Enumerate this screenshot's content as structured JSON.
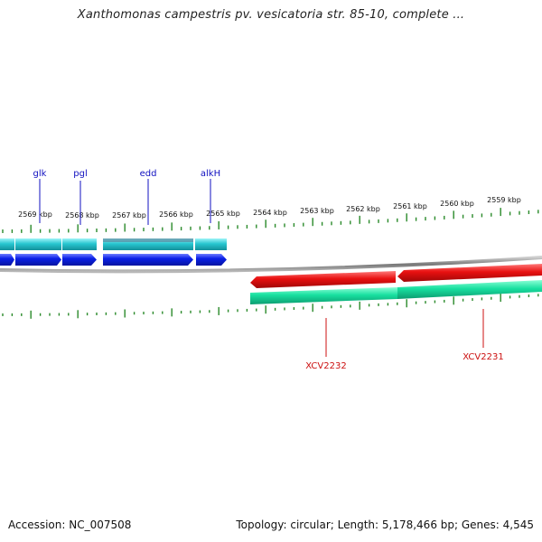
{
  "title": "Xanthomonas campestris pv. vesicatoria str. 85-10, complete ...",
  "footer": {
    "accession": "Accession: NC_007508",
    "summary": "Topology: circular; Length: 5,178,466 bp; Genes: 4,545"
  },
  "colors": {
    "tick": "#2a8a2a",
    "gene_top_blue": "#0a20e8",
    "gene_top_cyan": "#28c6d0",
    "gene_bottom_red": "#e81010",
    "gene_bottom_green": "#18e0a0",
    "backbone": "#888888",
    "label_blue": "#1010c0",
    "label_red": "#cc1010"
  },
  "tick_labels": [
    "2569 kbp",
    "2568 kbp",
    "2567 kbp",
    "2566 kbp",
    "2565 kbp",
    "2564 kbp",
    "2563 kbp",
    "2562 kbp",
    "2561 kbp",
    "2560 kbp",
    "2559 kbp"
  ],
  "top_genes": [
    "glk",
    "pgl",
    "edd",
    "alkH"
  ],
  "bottom_genes": [
    "XCV2232",
    "XCV2231"
  ]
}
